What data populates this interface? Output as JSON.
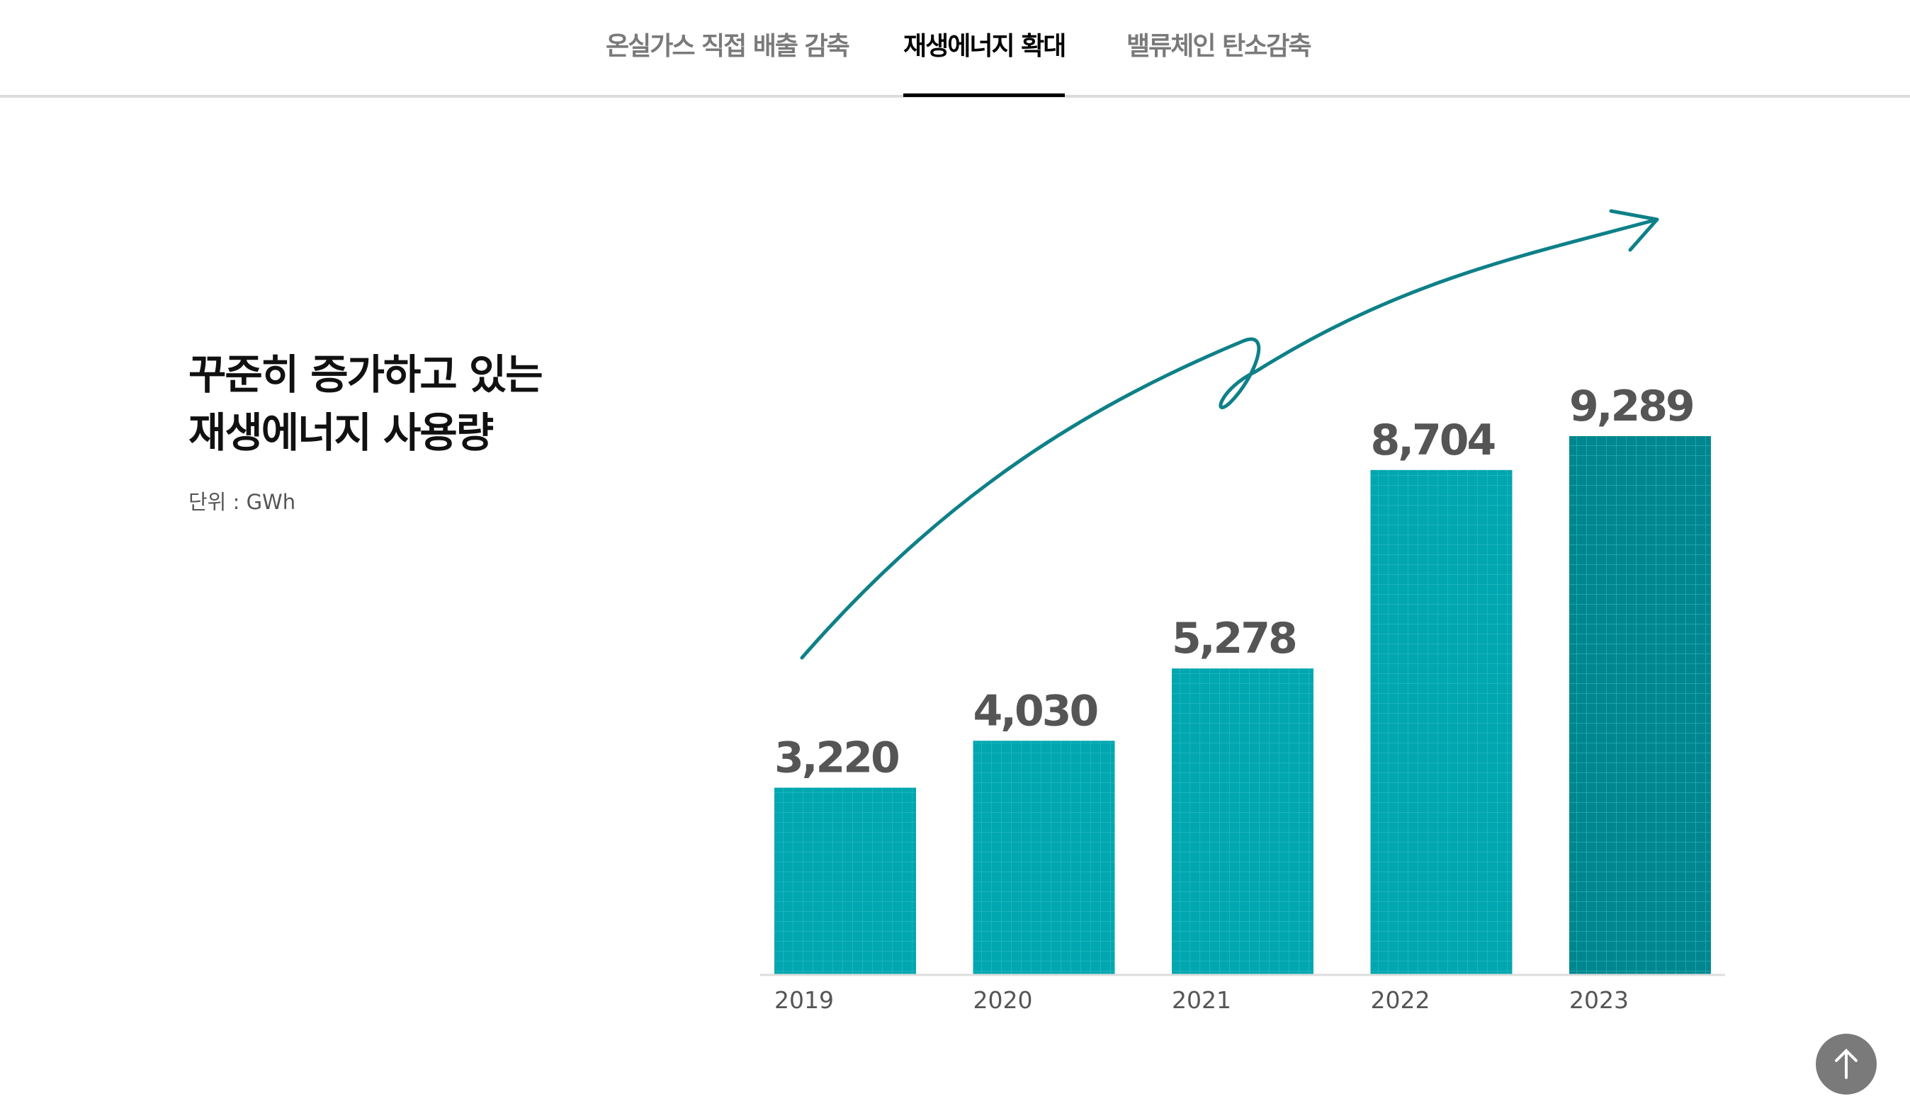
{
  "tabs": [
    {
      "label": "온실가스 직접 배출 감축",
      "active": false
    },
    {
      "label": "재생에너지 확대",
      "active": true
    },
    {
      "label": "밸류체인 탄소감축",
      "active": false
    }
  ],
  "heading": {
    "line1": "꾸준히 증가하고 있는",
    "line2": "재생에너지 사용량",
    "unit": "단위 : GWh"
  },
  "colors": {
    "bar": "#00a6b0",
    "highlight_bar": "#00868f",
    "grid_line": "#3cc6cc",
    "arrow": "#0e8088",
    "label": "#555555"
  },
  "chart_data": {
    "type": "bar",
    "categories": [
      "2019",
      "2020",
      "2021",
      "2022",
      "2023"
    ],
    "values": [
      3220,
      4030,
      5278,
      8704,
      9289
    ],
    "value_labels": [
      "3,220",
      "4,030",
      "5,278",
      "8,704",
      "9,289"
    ],
    "highlight_index": 4,
    "ylim": [
      0,
      9289
    ],
    "grid": false,
    "annotation": "upward trend arrow"
  },
  "scroll_top": {
    "icon": "arrow-up-icon"
  }
}
